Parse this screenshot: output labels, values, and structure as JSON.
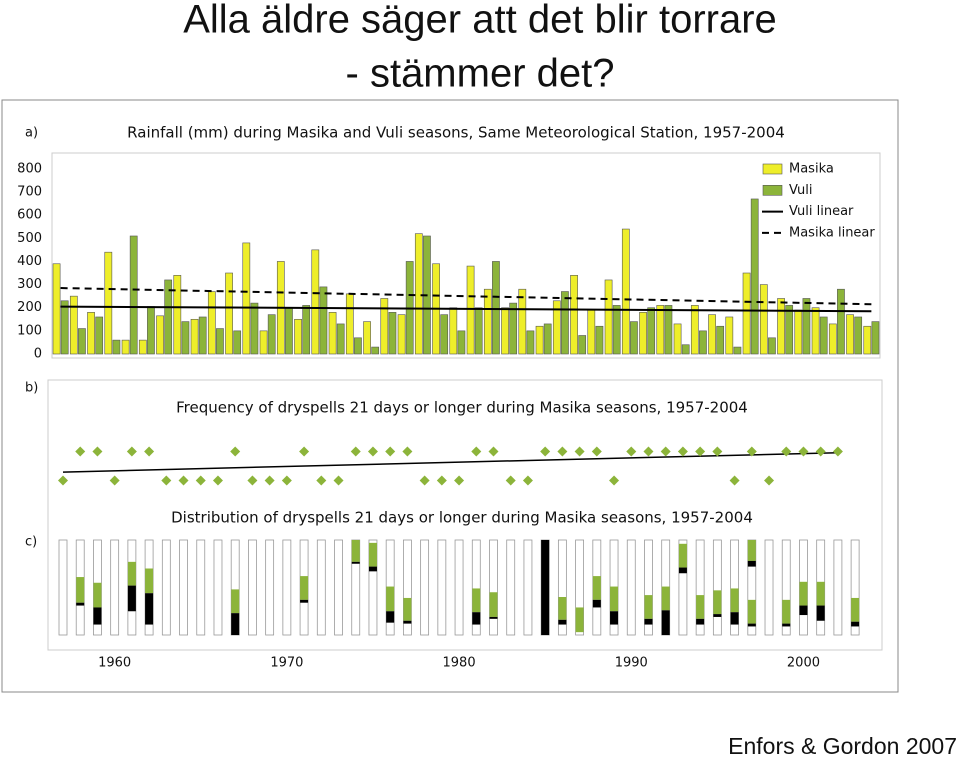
{
  "slide": {
    "title_line1": "Alla äldre säger att det blir torrare",
    "title_line2": "- stämmer det?",
    "credit": "Enfors & Gordon 2007"
  },
  "chart_data": [
    {
      "type": "bar",
      "panel": "a)",
      "title": "Rainfall (mm) during Masika and Vuli seasons, Same Meteorological Station, 1957-2004",
      "x": [
        1957,
        1958,
        1959,
        1960,
        1961,
        1962,
        1963,
        1964,
        1965,
        1966,
        1967,
        1968,
        1969,
        1970,
        1971,
        1972,
        1973,
        1974,
        1975,
        1976,
        1977,
        1978,
        1979,
        1980,
        1981,
        1982,
        1983,
        1984,
        1985,
        1986,
        1987,
        1988,
        1989,
        1990,
        1991,
        1992,
        1993,
        1994,
        1995,
        1996,
        1997,
        1998,
        1999,
        2000,
        2001,
        2002,
        2003,
        2004
      ],
      "xlim": [
        1956.5,
        2004.5
      ],
      "series": [
        {
          "name": "Masika",
          "color": "#eeee2a",
          "values": [
            390,
            250,
            180,
            440,
            60,
            60,
            165,
            340,
            150,
            270,
            350,
            480,
            100,
            400,
            150,
            450,
            180,
            260,
            140,
            240,
            170,
            520,
            390,
            200,
            380,
            280,
            200,
            280,
            120,
            230,
            340,
            190,
            320,
            540,
            180,
            210,
            130,
            210,
            170,
            160,
            350,
            300,
            240,
            190,
            200,
            130,
            170,
            120
          ]
        },
        {
          "name": "Vuli",
          "color": "#8cb43a",
          "values": [
            230,
            110,
            160,
            60,
            510,
            205,
            320,
            140,
            160,
            110,
            100,
            220,
            170,
            200,
            210,
            290,
            130,
            70,
            30,
            180,
            400,
            510,
            170,
            100,
            200,
            400,
            220,
            100,
            130,
            270,
            80,
            120,
            210,
            140,
            200,
            210,
            40,
            100,
            120,
            30,
            670,
            70,
            210,
            240,
            160,
            280,
            160,
            140
          ]
        }
      ],
      "trends": [
        {
          "name": "Vuli linear",
          "color": "#000000",
          "dashed": false,
          "x": [
            1957,
            2004
          ],
          "values": [
            205,
            185
          ]
        },
        {
          "name": "Masika linear",
          "color": "#000000",
          "dashed": true,
          "x": [
            1957,
            2004
          ],
          "values": [
            285,
            215
          ]
        }
      ],
      "ylim": [
        0,
        860
      ],
      "yticks": [
        0,
        100,
        200,
        300,
        400,
        500,
        600,
        700,
        800
      ]
    },
    {
      "type": "scatter",
      "panel": "b)",
      "title": "Frequency of dryspells 21 days or longer during Masika seasons, 1957-2004",
      "x": [
        1957,
        1958,
        1959,
        1960,
        1961,
        1962,
        1963,
        1964,
        1965,
        1966,
        1967,
        1968,
        1969,
        1970,
        1971,
        1972,
        1973,
        1974,
        1975,
        1976,
        1977,
        1978,
        1979,
        1980,
        1981,
        1982,
        1983,
        1984,
        1985,
        1986,
        1987,
        1988,
        1989,
        1990,
        1991,
        1992,
        1993,
        1994,
        1995,
        1996,
        1997,
        1998,
        1999,
        2000,
        2001,
        2002
      ],
      "values": [
        0,
        1,
        1,
        0,
        1,
        1,
        0,
        0,
        0,
        0,
        1,
        0,
        0,
        0,
        1,
        0,
        0,
        1,
        1,
        1,
        1,
        0,
        0,
        0,
        1,
        1,
        0,
        0,
        1,
        1,
        1,
        1,
        0,
        1,
        1,
        1,
        1,
        1,
        1,
        0,
        1,
        0,
        1,
        1,
        1,
        1
      ],
      "color": "#8cb43a",
      "trend": {
        "color": "#000000",
        "x": [
          1957,
          2002
        ],
        "values": [
          0.29,
          0.96
        ]
      },
      "ylim": [
        -0.4,
        1.4
      ]
    },
    {
      "type": "interval",
      "panel": "c)",
      "title": "Distribution of dryspells 21 days or longer during Masika seasons, 1957-2004",
      "x": [
        1957,
        1958,
        1959,
        1960,
        1961,
        1962,
        1963,
        1964,
        1965,
        1966,
        1967,
        1968,
        1969,
        1970,
        1971,
        1972,
        1973,
        1974,
        1975,
        1976,
        1977,
        1978,
        1979,
        1980,
        1981,
        1982,
        1983,
        1984,
        1985,
        1986,
        1987,
        1988,
        1989,
        1990,
        1991,
        1992,
        1993,
        1994,
        1995,
        1996,
        1997,
        1998,
        1999,
        2000,
        2001,
        2002,
        2003
      ],
      "segment_colors": [
        "#8cb43a",
        "#000000"
      ],
      "segments": [
        [],
        [
          [
            39,
            66,
            0
          ],
          [
            66,
            69,
            1
          ]
        ],
        [
          [
            45,
            71,
            0
          ],
          [
            71,
            89,
            1
          ]
        ],
        [],
        [
          [
            23,
            48,
            0
          ],
          [
            48,
            75,
            1
          ]
        ],
        [
          [
            30,
            56,
            0
          ],
          [
            56,
            89,
            1
          ]
        ],
        [],
        [],
        [],
        [],
        [
          [
            52,
            77,
            0
          ],
          [
            77,
            100,
            1
          ]
        ],
        [],
        [],
        [],
        [
          [
            38,
            63,
            0
          ],
          [
            63,
            66,
            1
          ]
        ],
        [],
        [],
        [
          [
            0,
            23,
            0
          ],
          [
            23,
            25,
            1
          ]
        ],
        [
          [
            3,
            28,
            0
          ],
          [
            28,
            33,
            1
          ]
        ],
        [
          [
            49,
            75,
            0
          ],
          [
            75,
            87,
            1
          ]
        ],
        [
          [
            61,
            85,
            0
          ],
          [
            85,
            88,
            1
          ]
        ],
        [],
        [],
        [],
        [
          [
            51,
            76,
            0
          ],
          [
            76,
            89,
            1
          ]
        ],
        [
          [
            55,
            81,
            0
          ],
          [
            81,
            83,
            1
          ]
        ],
        [],
        [],
        [
          [
            0,
            100,
            1
          ]
        ],
        [
          [
            60,
            84,
            0
          ],
          [
            84,
            89,
            1
          ]
        ],
        [
          [
            71,
            97,
            0
          ]
        ],
        [
          [
            38,
            63,
            0
          ],
          [
            63,
            71,
            1
          ]
        ],
        [
          [
            49,
            75,
            0
          ],
          [
            75,
            89,
            1
          ]
        ],
        [],
        [
          [
            58,
            83,
            0
          ],
          [
            83,
            89,
            1
          ]
        ],
        [
          [
            49,
            74,
            0
          ],
          [
            74,
            100,
            1
          ]
        ],
        [
          [
            4,
            29,
            0
          ],
          [
            29,
            35,
            1
          ]
        ],
        [
          [
            58,
            83,
            0
          ],
          [
            83,
            89,
            1
          ]
        ],
        [
          [
            53,
            78,
            0
          ],
          [
            78,
            81,
            1
          ]
        ],
        [
          [
            51,
            76,
            0
          ],
          [
            76,
            89,
            1
          ]
        ],
        [
          [
            0,
            22,
            0
          ],
          [
            22,
            28,
            1
          ],
          [
            63,
            88,
            0
          ],
          [
            88,
            91,
            1
          ]
        ],
        [],
        [
          [
            63,
            88,
            0
          ],
          [
            88,
            91,
            1
          ]
        ],
        [
          [
            44,
            69,
            0
          ],
          [
            69,
            79,
            1
          ]
        ],
        [
          [
            44,
            69,
            0
          ],
          [
            69,
            85,
            1
          ]
        ],
        [],
        [
          [
            61,
            86,
            0
          ],
          [
            86,
            91,
            1
          ]
        ]
      ],
      "ylim": [
        0,
        100
      ],
      "xlim": [
        1956.5,
        2003.5
      ],
      "xticks": [
        1960,
        1970,
        1980,
        1990,
        2000
      ]
    }
  ]
}
